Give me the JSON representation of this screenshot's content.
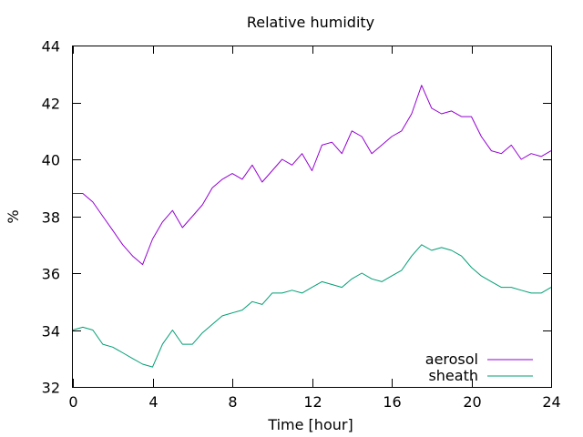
{
  "chart_data": {
    "type": "line",
    "title": "Relative humidity",
    "xlabel": "Time [hour]",
    "ylabel": "%",
    "xlim": [
      0,
      24
    ],
    "ylim": [
      32,
      44
    ],
    "xticks": [
      0,
      4,
      8,
      12,
      16,
      20,
      24
    ],
    "yticks": [
      32,
      34,
      36,
      38,
      40,
      42,
      44
    ],
    "grid": false,
    "legend_position": "bottom-right",
    "series": [
      {
        "name": "aerosol",
        "color": "#9400d3",
        "x": [
          0,
          0.5,
          1,
          1.5,
          2,
          2.5,
          3,
          3.5,
          4,
          4.5,
          5,
          5.5,
          6,
          6.5,
          7,
          7.5,
          8,
          8.5,
          9,
          9.5,
          10,
          10.5,
          11,
          11.5,
          12,
          12.5,
          13,
          13.5,
          14,
          14.5,
          15,
          15.5,
          16,
          16.5,
          17,
          17.5,
          18,
          18.5,
          19,
          19.5,
          20,
          20.5,
          21,
          21.5,
          22,
          22.5,
          23,
          23.5,
          24
        ],
        "y": [
          38.8,
          38.8,
          38.5,
          38.0,
          37.5,
          37.0,
          36.6,
          36.3,
          37.2,
          37.8,
          38.2,
          37.6,
          38.0,
          38.4,
          39.0,
          39.3,
          39.5,
          39.3,
          39.8,
          39.2,
          39.6,
          40.0,
          39.8,
          40.2,
          39.6,
          40.5,
          40.6,
          40.2,
          41.0,
          40.8,
          40.2,
          40.5,
          40.8,
          41.0,
          41.6,
          42.6,
          41.8,
          41.6,
          41.7,
          41.5,
          41.5,
          40.8,
          40.3,
          40.2,
          40.5,
          40.0,
          40.2,
          40.1,
          40.3
        ]
      },
      {
        "name": "sheath",
        "color": "#009e73",
        "x": [
          0,
          0.5,
          1,
          1.5,
          2,
          2.5,
          3,
          3.5,
          4,
          4.5,
          5,
          5.5,
          6,
          6.5,
          7,
          7.5,
          8,
          8.5,
          9,
          9.5,
          10,
          10.5,
          11,
          11.5,
          12,
          12.5,
          13,
          13.5,
          14,
          14.5,
          15,
          15.5,
          16,
          16.5,
          17,
          17.5,
          18,
          18.5,
          19,
          19.5,
          20,
          20.5,
          21,
          21.5,
          22,
          22.5,
          23,
          23.5,
          24
        ],
        "y": [
          34.0,
          34.1,
          34.0,
          33.5,
          33.4,
          33.2,
          33.0,
          32.8,
          32.7,
          33.5,
          34.0,
          33.5,
          33.5,
          33.9,
          34.2,
          34.5,
          34.6,
          34.7,
          35.0,
          34.9,
          35.3,
          35.3,
          35.4,
          35.3,
          35.5,
          35.7,
          35.6,
          35.5,
          35.8,
          36.0,
          35.8,
          35.7,
          35.9,
          36.1,
          36.6,
          37.0,
          36.8,
          36.9,
          36.8,
          36.6,
          36.2,
          35.9,
          35.7,
          35.5,
          35.5,
          35.4,
          35.3,
          35.3,
          35.5
        ]
      }
    ]
  }
}
